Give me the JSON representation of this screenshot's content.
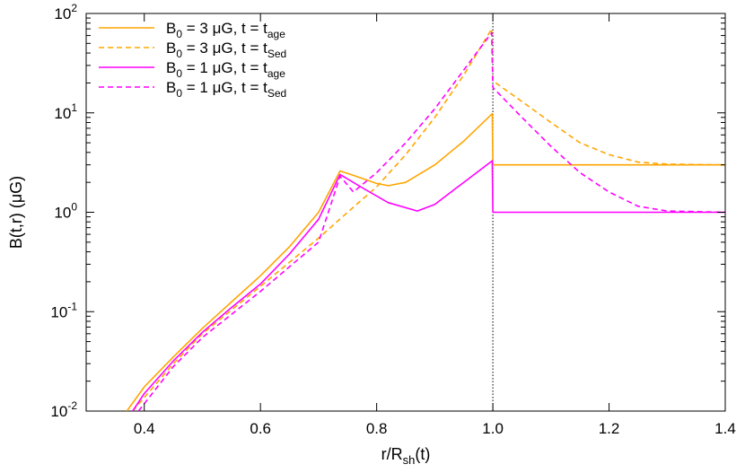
{
  "chart_data": {
    "type": "line",
    "xlabel": "r/R<sub>sh</sub>(t)",
    "xlabel_parts": {
      "base": "r/R",
      "sub": "sh",
      "tail": "(t)"
    },
    "ylabel": "B(t,r) (μG)",
    "xlim": [
      0.3,
      1.4
    ],
    "ylim": [
      0.01,
      100
    ],
    "y_scale": "log",
    "x_ticks": [
      "0.4",
      "0.6",
      "0.8",
      "1.0",
      "1.2",
      "1.4"
    ],
    "x_tick_values": [
      0.4,
      0.6,
      0.8,
      1.0,
      1.2,
      1.4
    ],
    "y_ticks": [
      {
        "value": 0.01,
        "base": "10",
        "exp": "-2"
      },
      {
        "value": 0.1,
        "base": "10",
        "exp": "-1"
      },
      {
        "value": 1,
        "base": "10",
        "exp": "0"
      },
      {
        "value": 10,
        "base": "10",
        "exp": "1"
      },
      {
        "value": 100,
        "base": "10",
        "exp": "2"
      }
    ],
    "vertical_reference_line": {
      "x": 1.0,
      "style": "dotted"
    },
    "legend_position": "top-left",
    "series": [
      {
        "name": "B0 = 3 μG, t = tage",
        "legend": {
          "a": "B",
          "a_sub": "0",
          "b": " = 3 μG, t = t",
          "b_sub": "age"
        },
        "color": "#ffa500",
        "dash": "solid",
        "points": [
          [
            0.37,
            0.01
          ],
          [
            0.4,
            0.0175
          ],
          [
            0.45,
            0.035
          ],
          [
            0.5,
            0.068
          ],
          [
            0.55,
            0.125
          ],
          [
            0.6,
            0.23
          ],
          [
            0.65,
            0.45
          ],
          [
            0.7,
            1.0
          ],
          [
            0.737,
            2.6
          ],
          [
            0.76,
            2.35
          ],
          [
            0.8,
            1.95
          ],
          [
            0.82,
            1.85
          ],
          [
            0.85,
            2.0
          ],
          [
            0.9,
            3.0
          ],
          [
            0.95,
            5.2
          ],
          [
            0.999,
            9.8
          ],
          [
            1.0,
            3.0
          ],
          [
            1.2,
            3.0
          ],
          [
            1.4,
            3.0
          ]
        ]
      },
      {
        "name": "B0 = 3 μG, t = tSed",
        "legend": {
          "a": "B",
          "a_sub": "0",
          "b": " = 3 μG, t = t",
          "b_sub": "Sed"
        },
        "color": "#ffa500",
        "dash": "dashed",
        "points": [
          [
            0.38,
            0.01
          ],
          [
            0.45,
            0.03
          ],
          [
            0.5,
            0.06
          ],
          [
            0.6,
            0.18
          ],
          [
            0.7,
            0.55
          ],
          [
            0.75,
            1.0
          ],
          [
            0.8,
            1.8
          ],
          [
            0.85,
            3.8
          ],
          [
            0.9,
            9.0
          ],
          [
            0.95,
            24
          ],
          [
            0.998,
            70
          ],
          [
            1.0,
            21
          ],
          [
            1.05,
            13
          ],
          [
            1.1,
            8.0
          ],
          [
            1.15,
            5.0
          ],
          [
            1.2,
            3.8
          ],
          [
            1.25,
            3.2
          ],
          [
            1.3,
            3.05
          ],
          [
            1.4,
            3.0
          ]
        ]
      },
      {
        "name": "B0 = 1 μG, t = tage",
        "legend": {
          "a": "B",
          "a_sub": "0",
          "b": " = 1 μG, t = t",
          "b_sub": "age"
        },
        "color": "#ff00ff",
        "dash": "solid",
        "points": [
          [
            0.38,
            0.01
          ],
          [
            0.4,
            0.015
          ],
          [
            0.45,
            0.032
          ],
          [
            0.5,
            0.062
          ],
          [
            0.55,
            0.11
          ],
          [
            0.6,
            0.19
          ],
          [
            0.65,
            0.38
          ],
          [
            0.7,
            0.85
          ],
          [
            0.737,
            2.4
          ],
          [
            0.78,
            1.7
          ],
          [
            0.82,
            1.25
          ],
          [
            0.87,
            1.03
          ],
          [
            0.9,
            1.2
          ],
          [
            0.95,
            2.0
          ],
          [
            0.999,
            3.3
          ],
          [
            1.0,
            1.0
          ],
          [
            1.2,
            1.0
          ],
          [
            1.4,
            1.0
          ]
        ]
      },
      {
        "name": "B0 = 1 μG, t = tSed",
        "legend": {
          "a": "B",
          "a_sub": "0",
          "b": " = 1 μG, t = t",
          "b_sub": "Sed"
        },
        "color": "#ff00ff",
        "dash": "dashed",
        "points": [
          [
            0.39,
            0.01
          ],
          [
            0.45,
            0.028
          ],
          [
            0.5,
            0.055
          ],
          [
            0.6,
            0.16
          ],
          [
            0.7,
            0.5
          ],
          [
            0.737,
            2.3
          ],
          [
            0.76,
            1.6
          ],
          [
            0.8,
            2.5
          ],
          [
            0.85,
            5.0
          ],
          [
            0.9,
            11
          ],
          [
            0.95,
            27
          ],
          [
            0.998,
            64
          ],
          [
            1.0,
            18
          ],
          [
            1.05,
            9.0
          ],
          [
            1.1,
            4.6
          ],
          [
            1.15,
            2.5
          ],
          [
            1.2,
            1.6
          ],
          [
            1.25,
            1.15
          ],
          [
            1.3,
            1.03
          ],
          [
            1.4,
            1.0
          ]
        ]
      }
    ]
  }
}
